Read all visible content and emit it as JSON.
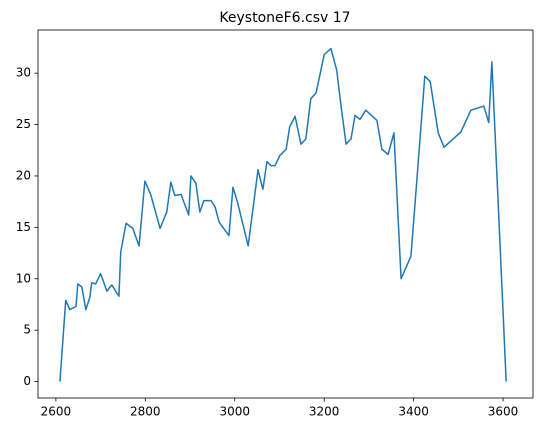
{
  "chart_data": {
    "type": "line",
    "title": "KeystoneF6.csv 17",
    "x": [
      2609,
      2622,
      2631,
      2645,
      2649,
      2658,
      2667,
      2676,
      2680,
      2689,
      2700,
      2714,
      2725,
      2741,
      2745,
      2757,
      2772,
      2786,
      2799,
      2812,
      2833,
      2848,
      2857,
      2866,
      2880,
      2897,
      2902,
      2913,
      2922,
      2931,
      2947,
      2956,
      2965,
      2987,
      2996,
      3007,
      3030,
      3052,
      3063,
      3072,
      3081,
      3090,
      3101,
      3115,
      3123,
      3135,
      3148,
      3159,
      3170,
      3182,
      3200,
      3215,
      3228,
      3238,
      3249,
      3260,
      3269,
      3280,
      3293,
      3318,
      3329,
      3343,
      3356,
      3372,
      3394,
      3408,
      3425,
      3437,
      3455,
      3468,
      3506,
      3528,
      3557,
      3568,
      3575,
      3607
    ],
    "series": [
      {
        "name": "17",
        "color": "#1f77b4",
        "values": [
          0,
          7.9,
          7.0,
          7.3,
          9.5,
          9.2,
          7.0,
          8.2,
          9.6,
          9.5,
          10.5,
          8.8,
          9.4,
          8.3,
          12.6,
          15.4,
          14.9,
          13.2,
          19.5,
          18.2,
          14.9,
          16.5,
          19.4,
          18.1,
          18.2,
          16.2,
          20.0,
          19.3,
          16.5,
          17.6,
          17.6,
          17.0,
          15.5,
          14.2,
          18.9,
          17.3,
          13.2,
          20.6,
          18.7,
          21.4,
          21.0,
          21.0,
          22.0,
          22.6,
          24.8,
          25.8,
          23.1,
          23.6,
          27.5,
          28.1,
          31.8,
          32.4,
          30.3,
          26.7,
          23.1,
          23.6,
          25.9,
          25.5,
          26.4,
          25.4,
          22.6,
          22.1,
          24.2,
          10.0,
          12.2,
          20.0,
          29.7,
          29.2,
          24.2,
          22.8,
          24.3,
          26.4,
          26.8,
          25.2,
          31.1,
          0
        ]
      }
    ],
    "xlim": [
      2560,
      3667
    ],
    "ylim": [
      -1.6,
      34.2
    ],
    "xticks": [
      2600,
      2800,
      3000,
      3200,
      3400,
      3600
    ],
    "yticks": [
      0,
      5,
      10,
      15,
      20,
      25,
      30
    ]
  }
}
